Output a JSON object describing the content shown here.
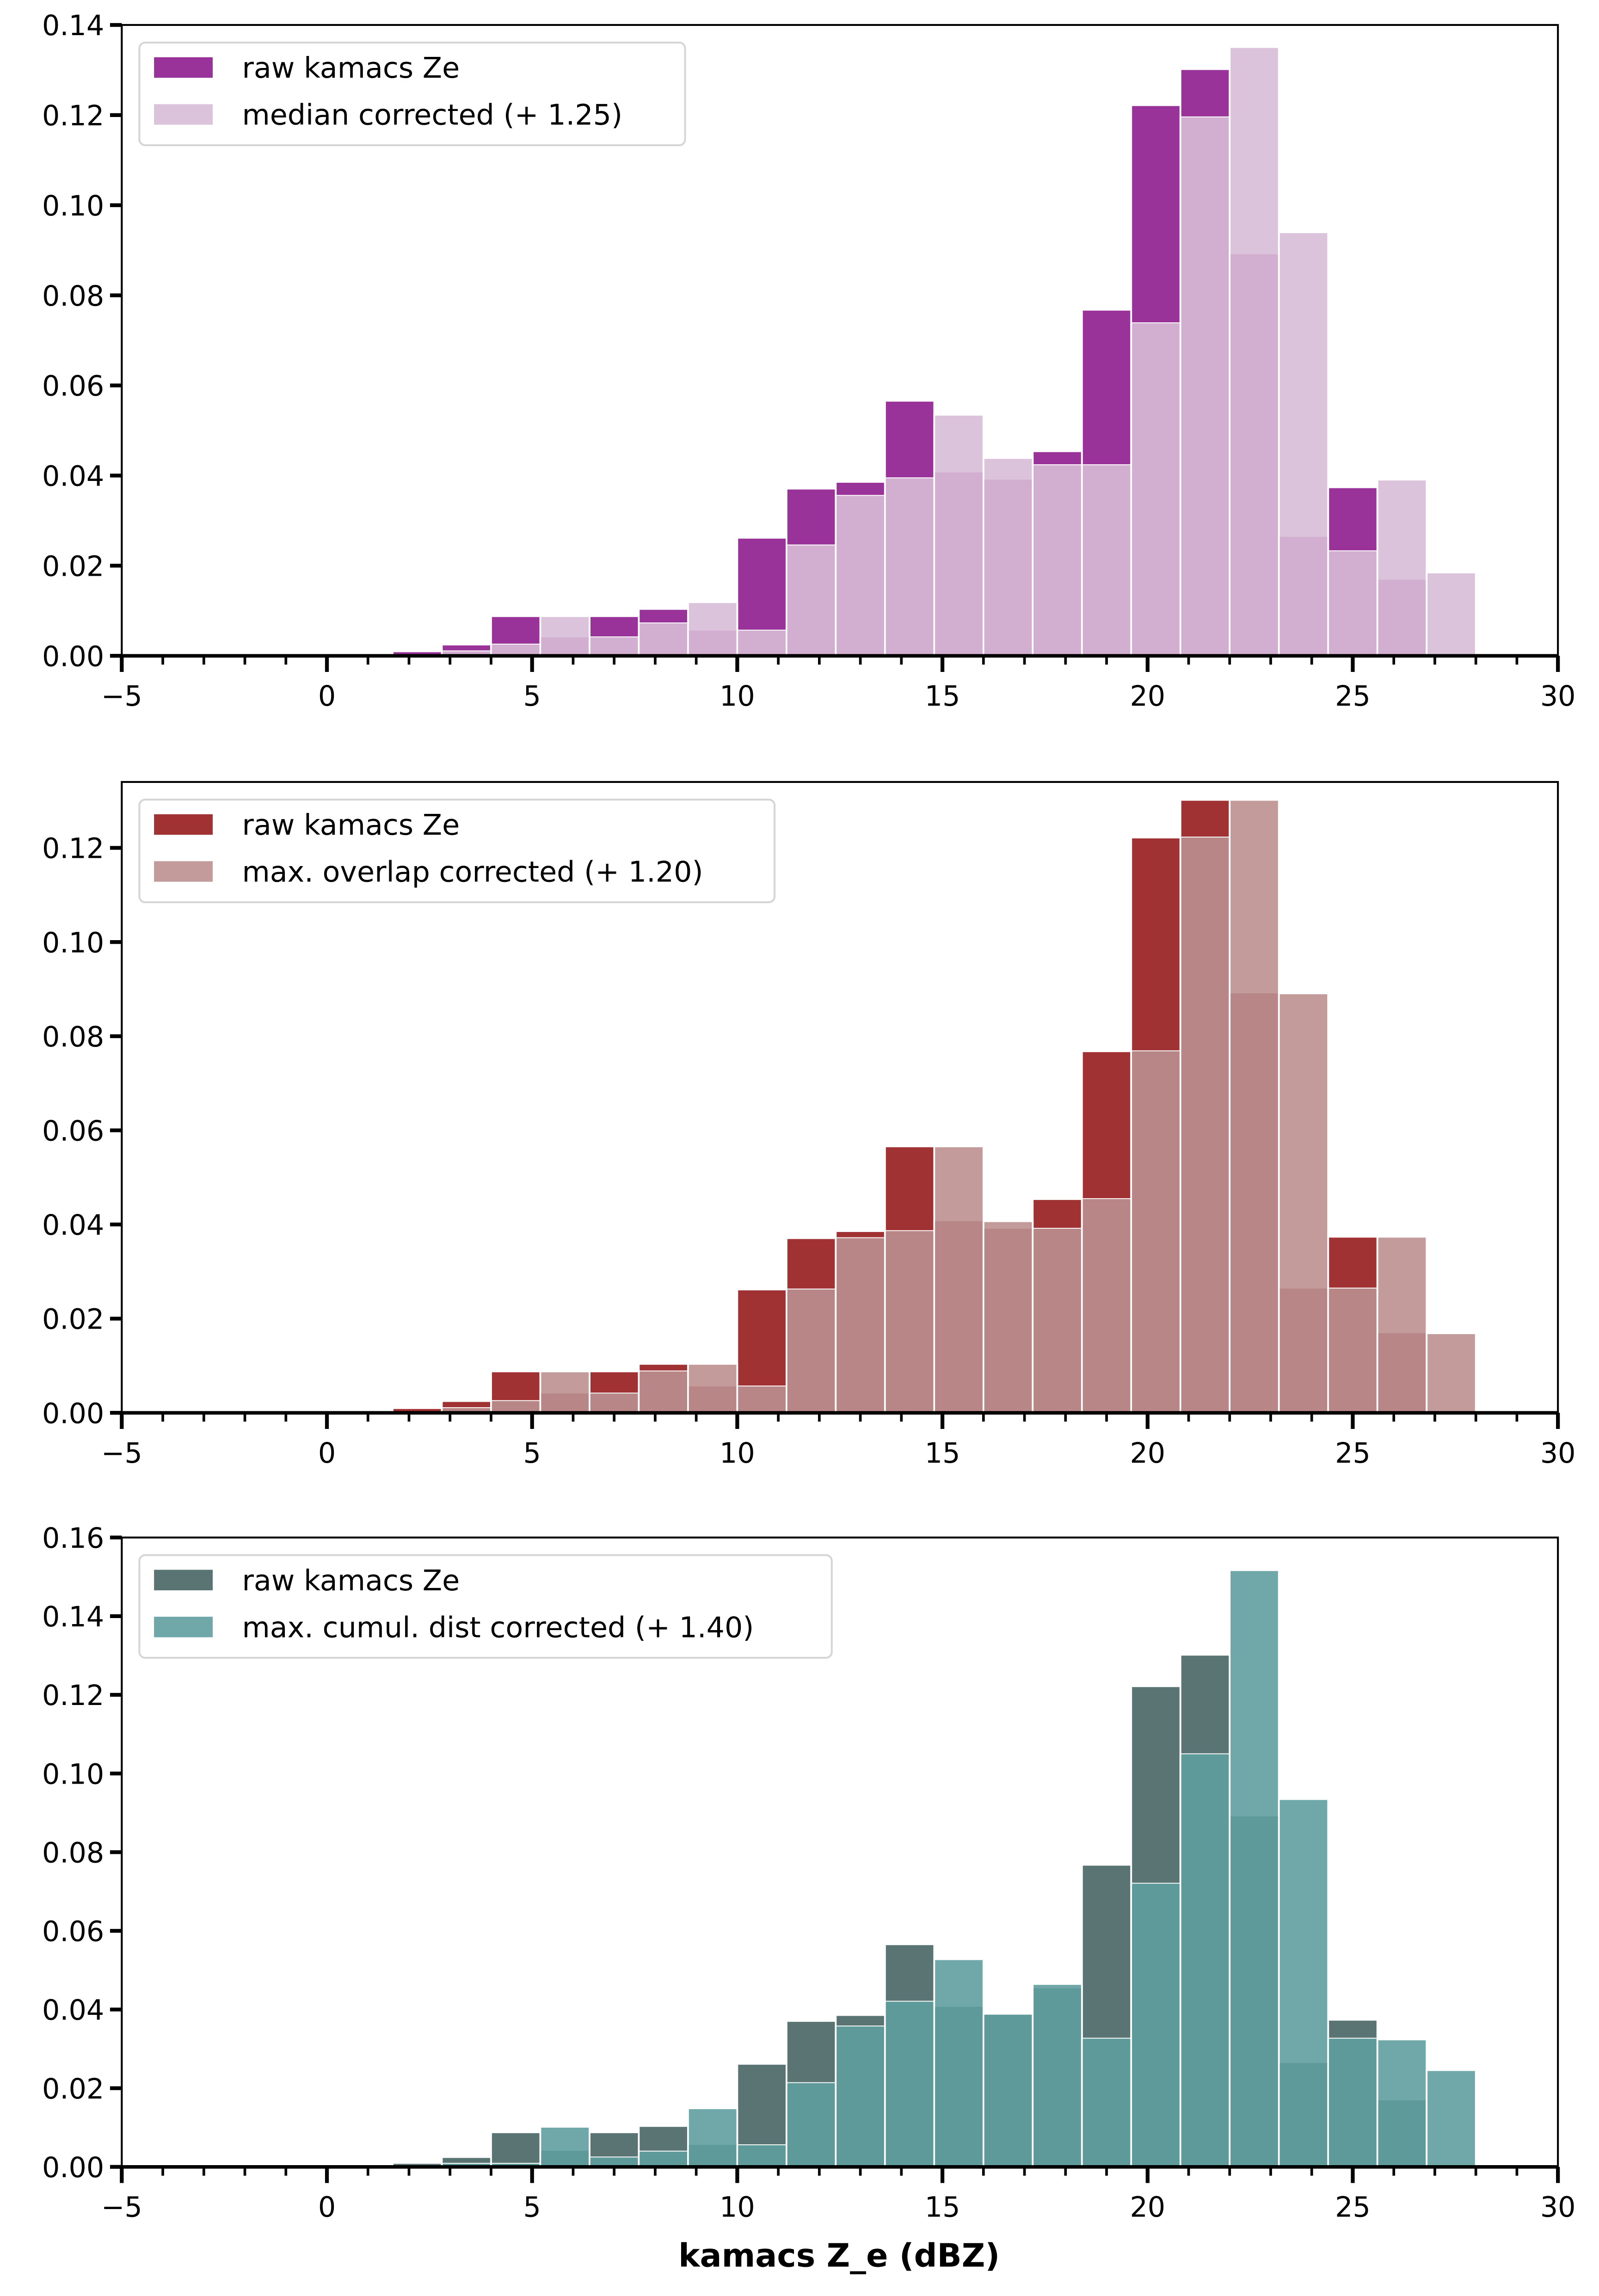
{
  "chart_data": [
    {
      "type": "bar",
      "subtype": "overlapping-histogram",
      "title": "",
      "xlabel": "",
      "ylabel": "",
      "xlim": [
        -5,
        30
      ],
      "ylim": [
        0,
        0.14
      ],
      "xticks": [
        -5,
        0,
        5,
        10,
        15,
        20,
        25,
        30
      ],
      "xtick_labels": [
        "−5",
        "0",
        "5",
        "10",
        "15",
        "20",
        "25",
        "30"
      ],
      "yticks": [
        0,
        0.02,
        0.04,
        0.06,
        0.08,
        0.1,
        0.12,
        0.14
      ],
      "ytick_labels": [
        "0.00",
        "0.02",
        "0.04",
        "0.06",
        "0.08",
        "0.10",
        "0.12",
        "0.14"
      ],
      "grid": false,
      "legend_position": "top-left",
      "bin_edges": [
        1.6,
        2.8,
        4.0,
        5.2,
        6.4,
        7.6,
        8.8,
        10.0,
        11.2,
        12.4,
        13.6,
        14.8,
        16.0,
        17.2,
        18.4,
        19.6,
        20.8,
        22.0,
        23.2,
        24.4,
        25.6,
        26.8,
        28.0
      ],
      "series": [
        {
          "name": "raw kamacs Ze",
          "color": "#993399",
          "values": [
            0.001,
            0.0025,
            0.0088,
            0.0041,
            0.0088,
            0.0104,
            0.0056,
            0.0262,
            0.0371,
            0.0386,
            0.0566,
            0.0407,
            0.0391,
            0.0454,
            0.0768,
            0.1222,
            0.1302,
            0.0891,
            0.0264,
            0.0374,
            0.0169,
            0
          ]
        },
        {
          "name": "median corrected (+ 1.25)",
          "color": "#dbc3db",
          "overlap_color": "#d2afd0",
          "values": [
            0,
            0.001,
            0.0025,
            0.0088,
            0.0041,
            0.0072,
            0.0119,
            0.0056,
            0.0245,
            0.0355,
            0.0394,
            0.0535,
            0.0439,
            0.0423,
            0.0423,
            0.0738,
            0.1195,
            0.1351,
            0.094,
            0.0232,
            0.0391,
            0.0185
          ]
        }
      ]
    },
    {
      "type": "bar",
      "subtype": "overlapping-histogram",
      "title": "",
      "xlabel": "",
      "ylabel": "",
      "xlim": [
        -5,
        30
      ],
      "ylim": [
        0,
        0.134
      ],
      "xticks": [
        -5,
        0,
        5,
        10,
        15,
        20,
        25,
        30
      ],
      "xtick_labels": [
        "−5",
        "0",
        "5",
        "10",
        "15",
        "20",
        "25",
        "30"
      ],
      "yticks": [
        0,
        0.02,
        0.04,
        0.06,
        0.08,
        0.1,
        0.12
      ],
      "ytick_labels": [
        "0.00",
        "0.02",
        "0.04",
        "0.06",
        "0.08",
        "0.10",
        "0.12"
      ],
      "grid": false,
      "legend_position": "top-left",
      "bin_edges": [
        1.6,
        2.8,
        4.0,
        5.2,
        6.4,
        7.6,
        8.8,
        10.0,
        11.2,
        12.4,
        13.6,
        14.8,
        16.0,
        17.2,
        18.4,
        19.6,
        20.8,
        22.0,
        23.2,
        24.4,
        25.6,
        26.8,
        28.0
      ],
      "series": [
        {
          "name": "raw kamacs Ze",
          "color": "#a03234",
          "values": [
            0.001,
            0.0025,
            0.0088,
            0.0041,
            0.0088,
            0.0104,
            0.0056,
            0.0262,
            0.0371,
            0.0386,
            0.0566,
            0.0407,
            0.0391,
            0.0454,
            0.0768,
            0.1222,
            0.1302,
            0.0891,
            0.0264,
            0.0374,
            0.0169,
            0
          ]
        },
        {
          "name": "max. overlap corrected (+ 1.20)",
          "color": "#c49b9b",
          "overlap_color": "#b88686",
          "values": [
            0,
            0.001,
            0.0025,
            0.0088,
            0.0041,
            0.0088,
            0.0104,
            0.0056,
            0.0262,
            0.0371,
            0.0386,
            0.0566,
            0.0407,
            0.0391,
            0.0454,
            0.0768,
            0.1222,
            0.1302,
            0.0891,
            0.0264,
            0.0374,
            0.0169
          ]
        }
      ]
    },
    {
      "type": "bar",
      "subtype": "overlapping-histogram",
      "title": "",
      "xlabel": "kamacs Z_e (dBZ)",
      "ylabel": "",
      "xlim": [
        -5,
        30
      ],
      "ylim": [
        0,
        0.16
      ],
      "xticks": [
        -5,
        0,
        5,
        10,
        15,
        20,
        25,
        30
      ],
      "xtick_labels": [
        "−5",
        "0",
        "5",
        "10",
        "15",
        "20",
        "25",
        "30"
      ],
      "yticks": [
        0,
        0.02,
        0.04,
        0.06,
        0.08,
        0.1,
        0.12,
        0.14,
        0.16
      ],
      "ytick_labels": [
        "0.00",
        "0.02",
        "0.04",
        "0.06",
        "0.08",
        "0.10",
        "0.12",
        "0.14",
        "0.16"
      ],
      "grid": false,
      "legend_position": "top-left",
      "bin_edges": [
        1.6,
        2.8,
        4.0,
        5.2,
        6.4,
        7.6,
        8.8,
        10.0,
        11.2,
        12.4,
        13.6,
        14.8,
        16.0,
        17.2,
        18.4,
        19.6,
        20.8,
        22.0,
        23.2,
        24.4,
        25.6,
        26.8,
        28.0
      ],
      "series": [
        {
          "name": "raw kamacs Ze",
          "color": "#5a7473",
          "values": [
            0.001,
            0.0025,
            0.0088,
            0.0041,
            0.0088,
            0.0104,
            0.0056,
            0.0262,
            0.0371,
            0.0386,
            0.0566,
            0.0407,
            0.0391,
            0.0454,
            0.0768,
            0.1222,
            0.1302,
            0.0891,
            0.0264,
            0.0374,
            0.0169,
            0
          ]
        },
        {
          "name": "max. cumul. dist corrected (+ 1.40)",
          "color": "#70a7a8",
          "overlap_color": "#5f9a9b",
          "values": [
            0,
            0.0008,
            0.0008,
            0.0102,
            0.0024,
            0.0039,
            0.0149,
            0.0055,
            0.0213,
            0.0357,
            0.042,
            0.0528,
            0.0387,
            0.0465,
            0.0326,
            0.072,
            0.1049,
            0.1517,
            0.0935,
            0.0326,
            0.0324,
            0.0246
          ]
        }
      ]
    }
  ]
}
